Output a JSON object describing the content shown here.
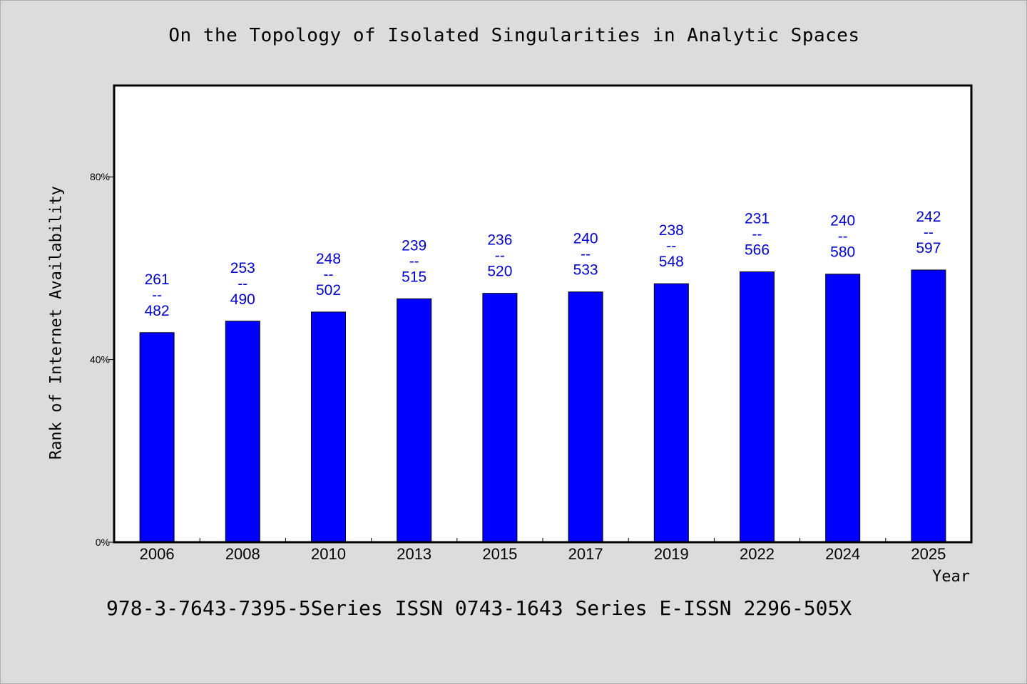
{
  "chart_data": {
    "type": "bar",
    "title": "On the Topology of Isolated Singularities in Analytic Spaces",
    "xlabel": "Year",
    "ylabel": "Rank of Internet Availability",
    "categories": [
      "2006",
      "2008",
      "2010",
      "2013",
      "2015",
      "2017",
      "2019",
      "2022",
      "2024",
      "2025"
    ],
    "values": [
      45.9,
      48.4,
      50.4,
      53.3,
      54.5,
      54.8,
      56.6,
      59.2,
      58.7,
      59.6
    ],
    "data_labels": [
      {
        "top": "261",
        "mid": "--",
        "bottom": "482"
      },
      {
        "top": "253",
        "mid": "--",
        "bottom": "490"
      },
      {
        "top": "248",
        "mid": "--",
        "bottom": "502"
      },
      {
        "top": "239",
        "mid": "--",
        "bottom": "515"
      },
      {
        "top": "236",
        "mid": "--",
        "bottom": "520"
      },
      {
        "top": "240",
        "mid": "--",
        "bottom": "533"
      },
      {
        "top": "238",
        "mid": "--",
        "bottom": "548"
      },
      {
        "top": "231",
        "mid": "--",
        "bottom": "566"
      },
      {
        "top": "240",
        "mid": "--",
        "bottom": "580"
      },
      {
        "top": "242",
        "mid": "--",
        "bottom": "597"
      }
    ],
    "ylim": [
      0,
      100
    ],
    "yticks": [
      {
        "value": 0,
        "label": "0%"
      },
      {
        "value": 40,
        "label": "40%"
      },
      {
        "value": 80,
        "label": "80%"
      }
    ],
    "grid": false,
    "bar_color": "#0000ff",
    "label_color": "#0000cc"
  },
  "footer": "978-3-7643-7395-5Series ISSN 0743-1643 Series E-ISSN 2296-505X"
}
